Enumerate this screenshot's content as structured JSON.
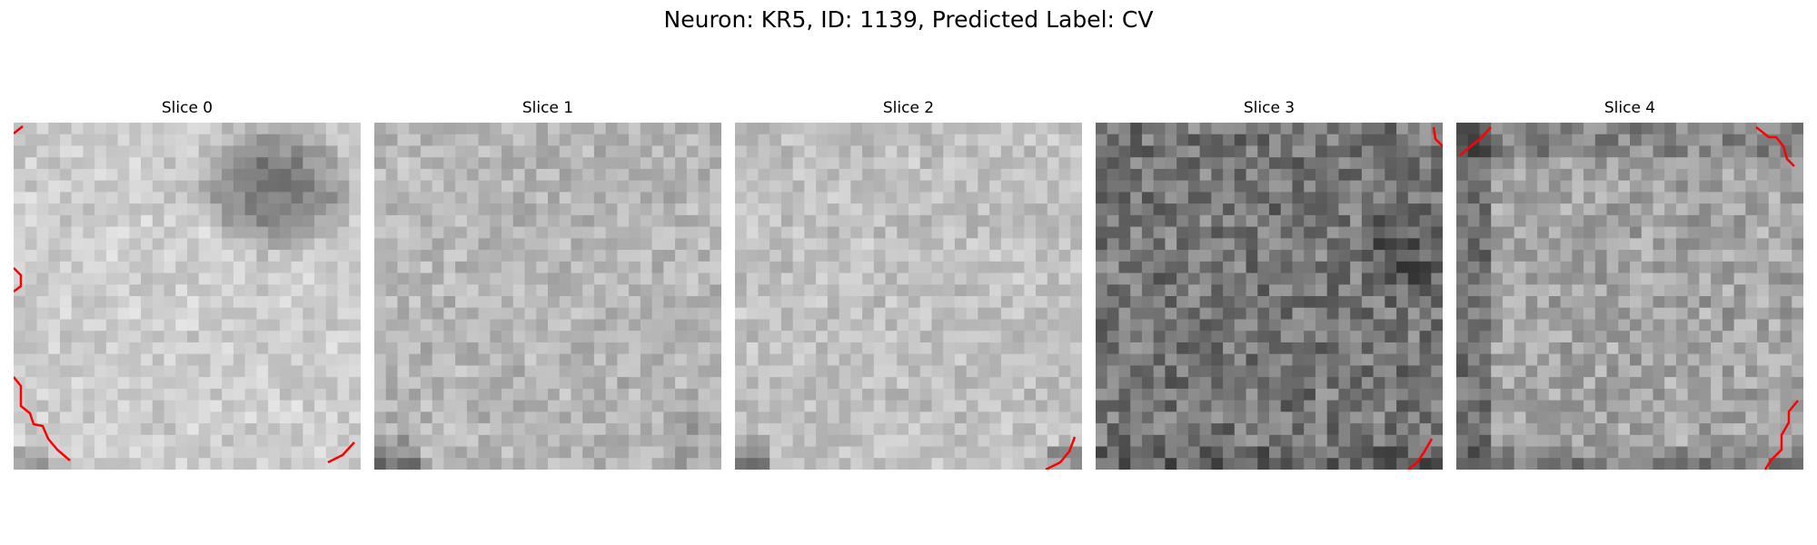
{
  "figure": {
    "suptitle": "Neuron: KR5, ID: 1139, Predicted Label: CV"
  },
  "slices": [
    {
      "title": "Slice 0",
      "seed": 11,
      "base": 205,
      "contrast": 20
    },
    {
      "title": "Slice 1",
      "seed": 23,
      "base": 182,
      "contrast": 24
    },
    {
      "title": "Slice 2",
      "seed": 37,
      "base": 192,
      "contrast": 22
    },
    {
      "title": "Slice 3",
      "seed": 41,
      "base": 118,
      "contrast": 40
    },
    {
      "title": "Slice 4",
      "seed": 59,
      "base": 165,
      "contrast": 32
    }
  ],
  "contour": {
    "color": "#ff0000"
  }
}
